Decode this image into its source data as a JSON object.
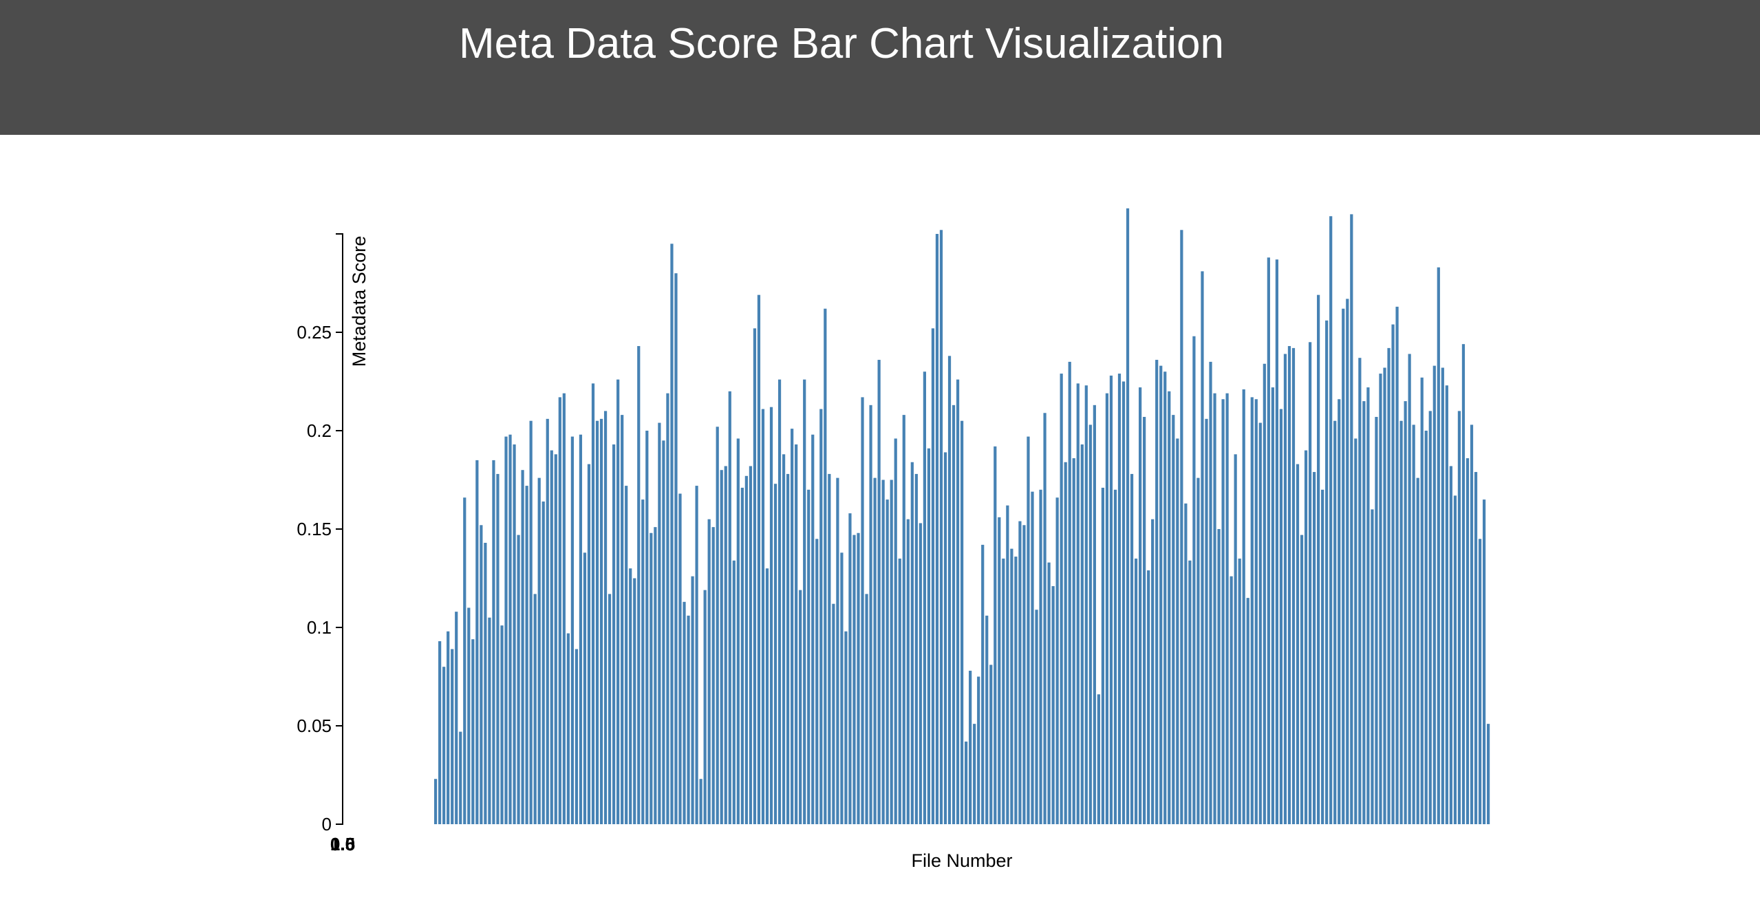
{
  "header": {
    "title": "Meta Data Score Bar Chart Visualization"
  },
  "colors": {
    "header_bg": "#4c4c4c",
    "bar": "#4682b4",
    "axis": "#000000"
  },
  "chart_data": {
    "type": "bar",
    "title": "Meta Data Score Bar Chart Visualization",
    "xlabel": "File Number",
    "ylabel": "Metadata Score",
    "ylim": [
      0,
      0.3
    ],
    "yticks": [
      0,
      0.05,
      0.1,
      0.15,
      0.2,
      0.25
    ],
    "ytick_labels": [
      "0",
      "0.05",
      "0.1",
      "0.15",
      "0.2",
      "0.25"
    ],
    "xtick_labels": [
      "0.0",
      "0.5",
      "1.0"
    ],
    "values": [
      0.023,
      0.093,
      0.08,
      0.098,
      0.089,
      0.108,
      0.047,
      0.166,
      0.11,
      0.094,
      0.185,
      0.152,
      0.143,
      0.105,
      0.185,
      0.178,
      0.101,
      0.197,
      0.198,
      0.193,
      0.147,
      0.18,
      0.172,
      0.205,
      0.117,
      0.176,
      0.164,
      0.206,
      0.19,
      0.188,
      0.217,
      0.219,
      0.097,
      0.197,
      0.089,
      0.198,
      0.138,
      0.183,
      0.224,
      0.205,
      0.206,
      0.21,
      0.117,
      0.193,
      0.226,
      0.208,
      0.172,
      0.13,
      0.125,
      0.243,
      0.165,
      0.2,
      0.148,
      0.151,
      0.204,
      0.195,
      0.219,
      0.295,
      0.28,
      0.168,
      0.113,
      0.106,
      0.126,
      0.172,
      0.023,
      0.119,
      0.155,
      0.151,
      0.202,
      0.18,
      0.182,
      0.22,
      0.134,
      0.196,
      0.171,
      0.177,
      0.182,
      0.252,
      0.269,
      0.211,
      0.13,
      0.212,
      0.173,
      0.226,
      0.188,
      0.178,
      0.201,
      0.193,
      0.119,
      0.226,
      0.17,
      0.198,
      0.145,
      0.211,
      0.262,
      0.178,
      0.112,
      0.176,
      0.138,
      0.098,
      0.158,
      0.147,
      0.148,
      0.217,
      0.117,
      0.213,
      0.176,
      0.236,
      0.175,
      0.165,
      0.175,
      0.196,
      0.135,
      0.208,
      0.155,
      0.184,
      0.178,
      0.153,
      0.23,
      0.191,
      0.252,
      0.3,
      0.302,
      0.189,
      0.238,
      0.213,
      0.226,
      0.205,
      0.042,
      0.078,
      0.051,
      0.075,
      0.142,
      0.106,
      0.081,
      0.192,
      0.156,
      0.135,
      0.162,
      0.14,
      0.136,
      0.154,
      0.152,
      0.197,
      0.169,
      0.109,
      0.17,
      0.209,
      0.133,
      0.121,
      0.166,
      0.229,
      0.184,
      0.235,
      0.186,
      0.224,
      0.193,
      0.223,
      0.203,
      0.213,
      0.066,
      0.171,
      0.219,
      0.228,
      0.17,
      0.229,
      0.225,
      0.313,
      0.178,
      0.135,
      0.222,
      0.207,
      0.129,
      0.155,
      0.236,
      0.233,
      0.23,
      0.22,
      0.208,
      0.196,
      0.302,
      0.163,
      0.134,
      0.248,
      0.176,
      0.281,
      0.206,
      0.235,
      0.219,
      0.15,
      0.216,
      0.219,
      0.126,
      0.188,
      0.135,
      0.221,
      0.115,
      0.217,
      0.216,
      0.204,
      0.234,
      0.288,
      0.222,
      0.287,
      0.211,
      0.239,
      0.243,
      0.242,
      0.183,
      0.147,
      0.19,
      0.245,
      0.179,
      0.269,
      0.17,
      0.256,
      0.309,
      0.205,
      0.216,
      0.262,
      0.267,
      0.31,
      0.196,
      0.237,
      0.215,
      0.222,
      0.16,
      0.207,
      0.229,
      0.232,
      0.242,
      0.254,
      0.263,
      0.205,
      0.215,
      0.239,
      0.203,
      0.176,
      0.227,
      0.2,
      0.21,
      0.233,
      0.283,
      0.232,
      0.223,
      0.182,
      0.167,
      0.21,
      0.244,
      0.186,
      0.203,
      0.179,
      0.145,
      0.165,
      0.051
    ]
  }
}
